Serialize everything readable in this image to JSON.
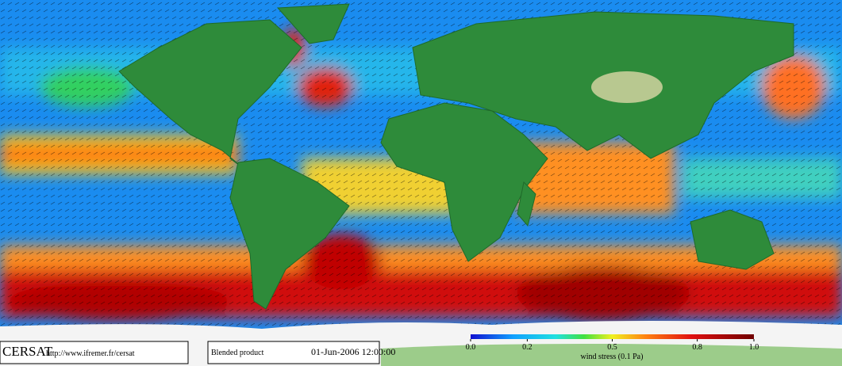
{
  "footer": {
    "logo": "CERSAT",
    "url": "http://www.ifremer.fr/cersat",
    "product": "Blended product",
    "date": "01-Jun-2006 12:00:00"
  },
  "colorbar": {
    "label": "wind stress (0.1 Pa)",
    "range": [
      0,
      1
    ],
    "ticks": [
      {
        "value": 0,
        "label": "0.0"
      },
      0.2,
      0.5,
      0.8,
      {
        "value": 1,
        "label": "1.0"
      }
    ]
  }
}
